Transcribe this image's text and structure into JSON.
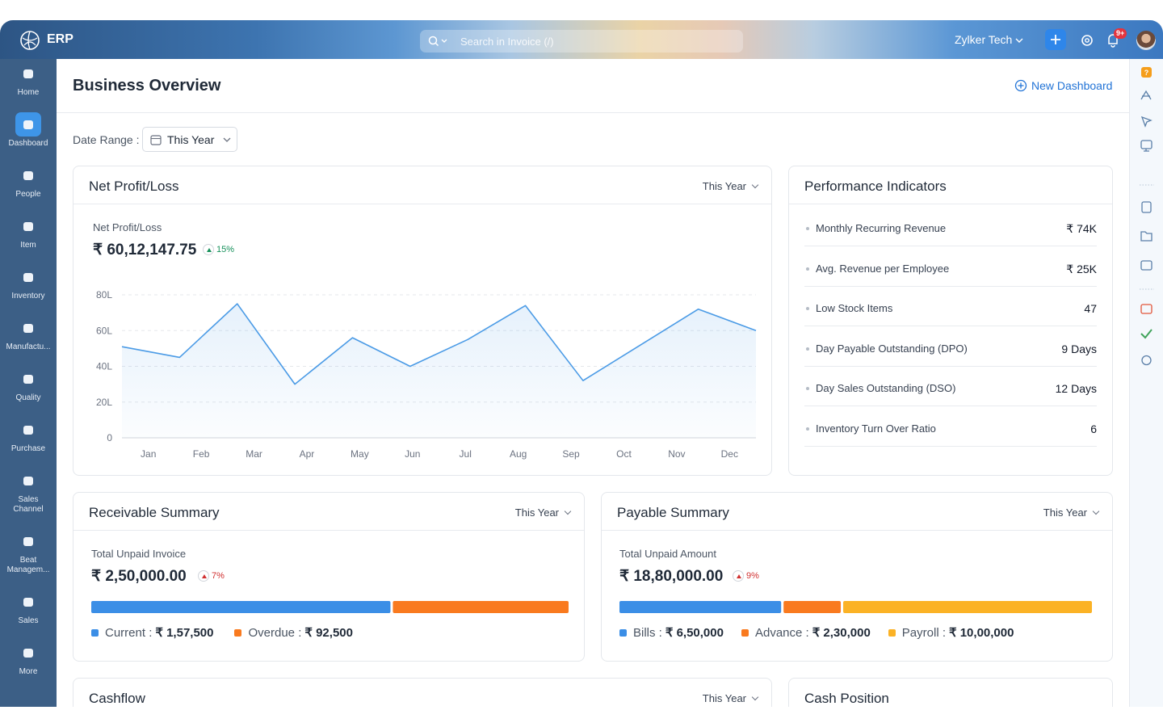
{
  "header": {
    "logo": "ERP",
    "search_placeholder": "Search in Invoice (/)",
    "organization": "Zylker Tech",
    "notification_count": "9+"
  },
  "sidebar": {
    "items": [
      "Home",
      "Dashboard",
      "People",
      "Item",
      "Inventory",
      "Manufactu...",
      "Quality",
      "Purchase",
      "Sales Channel",
      "Beat Managem...",
      "Sales",
      "More"
    ],
    "active": 1
  },
  "page": {
    "title": "Business Overview",
    "new_dashboard": "New Dashboard",
    "date_range_label": "Date Range :",
    "date_range": "This Year"
  },
  "net_profit": {
    "title": "Net Profit/Loss",
    "filter": "This Year",
    "label": "Net Profit/Loss",
    "amount": "₹ 60,12,147.75",
    "change": "15%"
  },
  "chart_data": {
    "type": "line",
    "categories": [
      "Jan",
      "Feb",
      "Mar",
      "Apr",
      "May",
      "Jun",
      "Jul",
      "Aug",
      "Sep",
      "Oct",
      "Nov",
      "Dec"
    ],
    "values": [
      51,
      45,
      75,
      30,
      56,
      40,
      55,
      74,
      32,
      52,
      72,
      60
    ],
    "color": "#4b9be6",
    "ylim": [
      0,
      80
    ],
    "yticks": [
      0,
      {
        "value": 20,
        "label": "20L"
      },
      {
        "value": 40,
        "label": "40L"
      },
      {
        "value": 60,
        "label": "60L"
      },
      {
        "value": 80,
        "label": "80L"
      }
    ],
    "grid": true
  },
  "performance": {
    "title": "Performance Indicators",
    "rows": [
      {
        "label": "Monthly Recurring Revenue",
        "value": "₹ 74K"
      },
      {
        "label": "Avg. Revenue per Employee",
        "value": "₹ 25K"
      },
      {
        "label": "Low Stock Items",
        "value": "47"
      },
      {
        "label": "Day Payable Outstanding (DPO)",
        "value": "9 Days"
      },
      {
        "label": "Day Sales Outstanding (DSO)",
        "value": "12 Days"
      },
      {
        "label": "Inventory Turn Over Ratio",
        "value": "6"
      }
    ]
  },
  "receivable": {
    "title": "Receivable Summary",
    "filter": "This Year",
    "label": "Total Unpaid Invoice",
    "amount": "₹ 2,50,000.00",
    "change": "7%",
    "segments": [
      {
        "name": "Current",
        "color": "#3b8ee6",
        "value": 157500,
        "value_label": "₹ 1,57,500"
      },
      {
        "name": "Overdue",
        "color": "#f97a1f",
        "value": 92500,
        "value_label": "₹ 92,500"
      }
    ]
  },
  "payable": {
    "title": "Payable Summary",
    "filter": "This Year",
    "label": "Total Unpaid Amount",
    "amount": "₹ 18,80,000.00",
    "change": "9%",
    "segments": [
      {
        "name": "Bills",
        "color": "#3b8ee6",
        "value": 650000,
        "value_label": "₹ 6,50,000"
      },
      {
        "name": "Advance",
        "color": "#f97a1f",
        "value": 230000,
        "value_label": "₹ 2,30,000"
      },
      {
        "name": "Payroll",
        "color": "#fbb225",
        "value": 1000000,
        "value_label": "₹ 10,00,000"
      }
    ]
  },
  "cashflow": {
    "title": "Cashflow",
    "filter": "This Year"
  },
  "cash_position": {
    "title": "Cash Position"
  }
}
